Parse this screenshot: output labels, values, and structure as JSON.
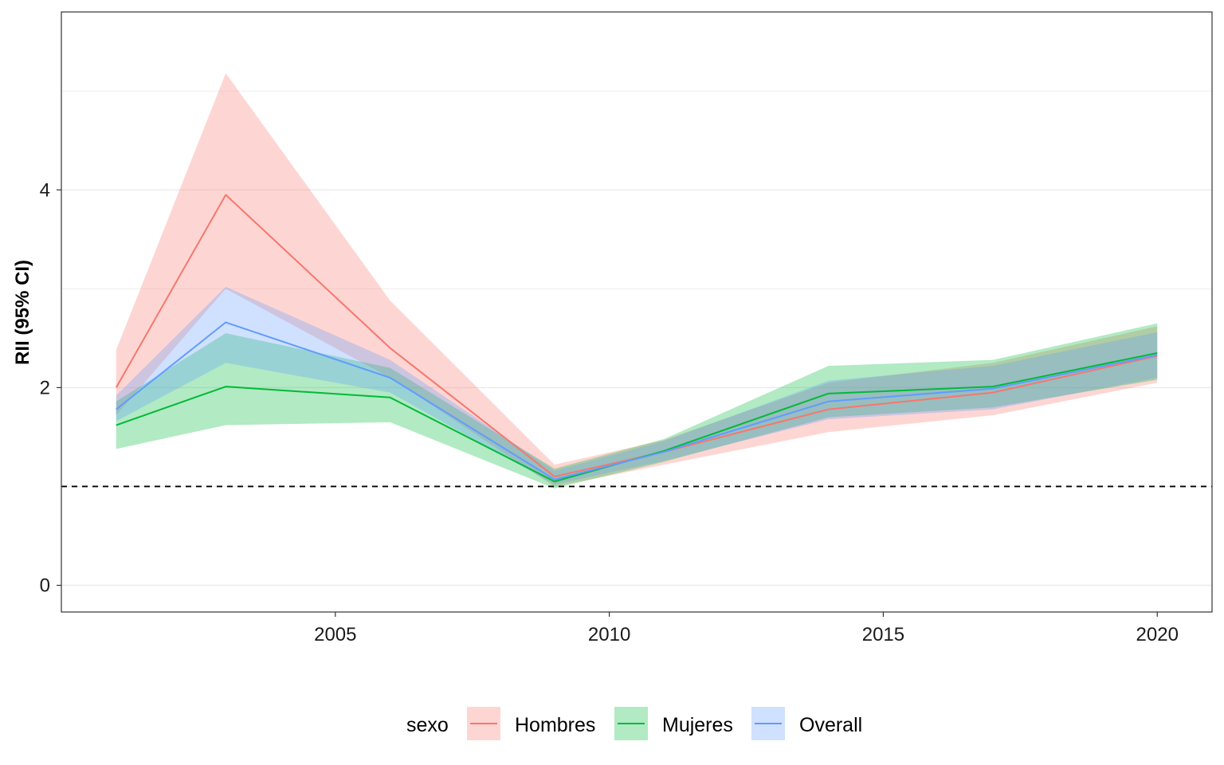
{
  "chart_data": {
    "type": "line",
    "title": "",
    "xlabel": "",
    "ylabel": "RII (95% CI)",
    "xlim": [
      2000.0,
      2021.0
    ],
    "ylim": [
      -0.27,
      5.8
    ],
    "x_ticks": [
      2005,
      2010,
      2015,
      2020
    ],
    "y_ticks": [
      0,
      2,
      4
    ],
    "grid": true,
    "reference_line": {
      "y": 1,
      "style": "dashed"
    },
    "legend": {
      "title": "sexo",
      "position": "bottom"
    },
    "x": [
      2001,
      2003,
      2006,
      2009,
      2011,
      2014,
      2017,
      2020
    ],
    "series": [
      {
        "name": "Hombres",
        "color": "#F8766D",
        "values": [
          2.0,
          3.95,
          2.4,
          1.1,
          1.35,
          1.78,
          1.95,
          2.32
        ],
        "lower": [
          1.72,
          3.0,
          2.1,
          1.0,
          1.22,
          1.55,
          1.72,
          2.05
        ],
        "upper": [
          2.38,
          5.18,
          2.88,
          1.22,
          1.47,
          2.05,
          2.25,
          2.62
        ]
      },
      {
        "name": "Mujeres",
        "color": "#00BA38",
        "values": [
          1.62,
          2.01,
          1.9,
          1.05,
          1.36,
          1.94,
          2.01,
          2.35
        ],
        "lower": [
          1.38,
          1.62,
          1.65,
          0.98,
          1.25,
          1.7,
          1.8,
          2.08
        ],
        "upper": [
          1.86,
          2.55,
          2.2,
          1.18,
          1.48,
          2.22,
          2.28,
          2.65
        ]
      },
      {
        "name": "Overall",
        "color": "#619CFF",
        "values": [
          1.78,
          2.66,
          2.1,
          1.07,
          1.35,
          1.86,
          1.99,
          2.33
        ],
        "lower": [
          1.66,
          2.25,
          1.95,
          1.02,
          1.26,
          1.68,
          1.78,
          2.1
        ],
        "upper": [
          1.92,
          3.02,
          2.28,
          1.16,
          1.46,
          2.07,
          2.22,
          2.56
        ]
      }
    ]
  }
}
